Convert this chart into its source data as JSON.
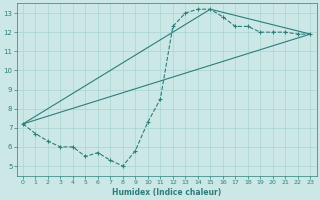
{
  "xlabel": "Humidex (Indice chaleur)",
  "xlim": [
    -0.5,
    23.5
  ],
  "ylim": [
    4.5,
    13.5
  ],
  "xticks": [
    0,
    1,
    2,
    3,
    4,
    5,
    6,
    7,
    8,
    9,
    10,
    11,
    12,
    13,
    14,
    15,
    16,
    17,
    18,
    19,
    20,
    21,
    22,
    23
  ],
  "yticks": [
    5,
    6,
    7,
    8,
    9,
    10,
    11,
    12,
    13
  ],
  "bg_color": "#cce8e6",
  "line_color": "#2d7d7a",
  "grid_color": "#aad4d2",
  "line1_x": [
    0,
    1,
    2,
    3,
    4,
    5,
    6,
    7,
    8,
    9,
    10,
    11,
    12,
    13,
    14,
    15,
    16,
    17,
    18,
    19,
    20,
    21,
    22,
    23
  ],
  "line1_y": [
    7.2,
    6.7,
    6.3,
    6.0,
    6.0,
    5.5,
    5.7,
    5.3,
    5.0,
    5.8,
    7.3,
    8.5,
    12.3,
    13.0,
    13.2,
    13.2,
    12.8,
    12.3,
    12.3,
    12.0,
    12.0,
    12.0,
    11.9,
    11.9
  ],
  "line2_x": [
    0,
    15,
    23
  ],
  "line2_y": [
    7.2,
    13.2,
    11.9
  ],
  "line3_x": [
    0,
    23
  ],
  "line3_y": [
    7.2,
    11.9
  ],
  "figsize": [
    3.2,
    2.0
  ],
  "dpi": 100
}
